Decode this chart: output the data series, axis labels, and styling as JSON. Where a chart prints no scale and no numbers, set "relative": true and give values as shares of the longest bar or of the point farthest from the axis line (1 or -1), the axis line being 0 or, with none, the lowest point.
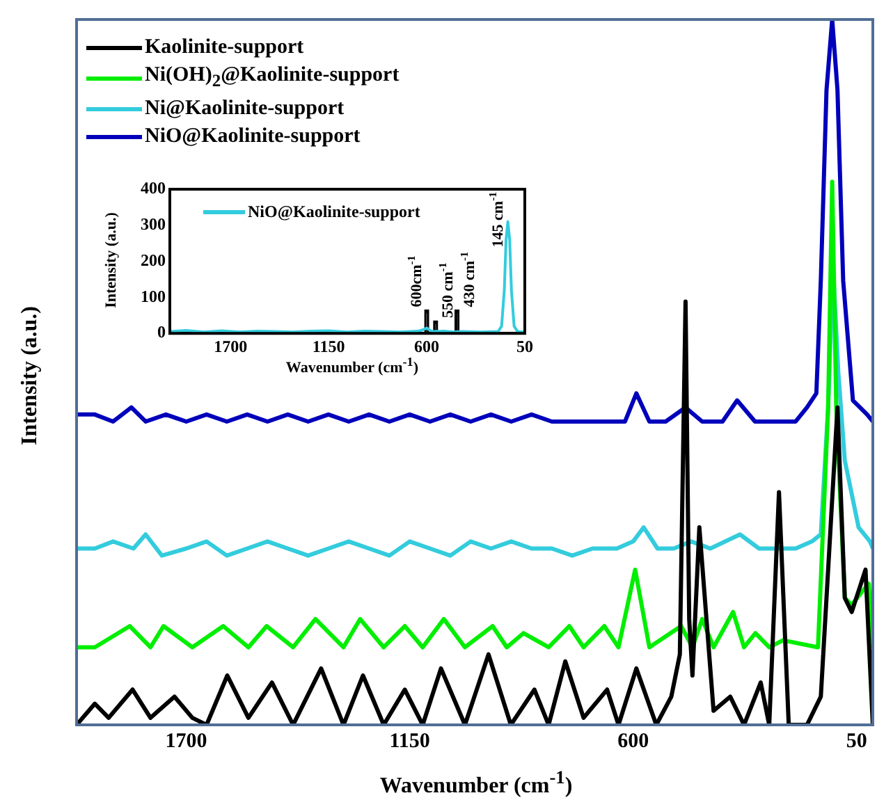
{
  "chart_data": [
    {
      "type": "line",
      "xlabel": "Wavenumber (cm$^{-1}$)",
      "ylabel": "Intensity (a.u.)",
      "relative": true,
      "xlim": [
        1970,
        10
      ],
      "xticks": [
        1700,
        1150,
        600,
        50
      ],
      "legend": "top left",
      "series": [
        {
          "name": "Kaolinite-support",
          "color": "#000000",
          "x": [
            1970,
            1925,
            1891,
            1832,
            1788,
            1729,
            1685,
            1650,
            1599,
            1547,
            1489,
            1437,
            1368,
            1313,
            1265,
            1214,
            1162,
            1118,
            1073,
            1014,
            956,
            901,
            843,
            808,
            767,
            722,
            664,
            636,
            592,
            543,
            506,
            485,
            471,
            462,
            454,
            437,
            402,
            361,
            327,
            286,
            265,
            241,
            217,
            172,
            138,
            97,
            79,
            62,
            45,
            28,
            10
          ],
          "values": [
            0,
            0.03,
            0.01,
            0.05,
            0.01,
            0.04,
            0.01,
            0,
            0.07,
            0.01,
            0.06,
            0,
            0.08,
            0,
            0.07,
            0,
            0.05,
            0,
            0.08,
            0,
            0.1,
            0,
            0.05,
            0,
            0.09,
            0.01,
            0.05,
            0,
            0.08,
            0,
            0.04,
            0.1,
            0.6,
            0.15,
            0.07,
            0.28,
            0.02,
            0.04,
            0,
            0.06,
            0,
            0.33,
            0,
            0,
            0.04,
            0.45,
            0.18,
            0.16,
            0.19,
            0.22,
            0
          ]
        },
        {
          "name": "Ni(OH)$_{2}$@Kaolinite-support",
          "color": "#00ee00",
          "x": [
            1970,
            1925,
            1839,
            1788,
            1756,
            1685,
            1609,
            1547,
            1502,
            1437,
            1382,
            1313,
            1272,
            1214,
            1162,
            1118,
            1066,
            1014,
            946,
            911,
            870,
            808,
            757,
            722,
            671,
            636,
            595,
            560,
            482,
            454,
            430,
            402,
            354,
            327,
            299,
            265,
            231,
            145,
            120,
            110,
            100,
            79,
            62,
            35,
            20,
            10
          ],
          "values": [
            0.11,
            0.11,
            0.14,
            0.11,
            0.14,
            0.11,
            0.14,
            0.11,
            0.14,
            0.11,
            0.15,
            0.11,
            0.15,
            0.11,
            0.14,
            0.11,
            0.15,
            0.11,
            0.14,
            0.11,
            0.13,
            0.11,
            0.14,
            0.11,
            0.14,
            0.11,
            0.22,
            0.11,
            0.14,
            0.11,
            0.15,
            0.11,
            0.16,
            0.11,
            0.13,
            0.11,
            0.12,
            0.11,
            0.45,
            0.77,
            0.45,
            0.18,
            0.17,
            0.19,
            0.2,
            0.11
          ]
        },
        {
          "name": "Ni@Kaolinite-support",
          "color": "#33ccdd",
          "x": [
            1970,
            1925,
            1880,
            1830,
            1800,
            1760,
            1700,
            1650,
            1600,
            1550,
            1500,
            1450,
            1400,
            1350,
            1300,
            1250,
            1200,
            1150,
            1100,
            1050,
            1000,
            950,
            900,
            850,
            800,
            750,
            700,
            640,
            600,
            574,
            540,
            500,
            457,
            410,
            337,
            290,
            241,
            200,
            160,
            138,
            120,
            108,
            95,
            79,
            45,
            17,
            10
          ],
          "values": [
            0.25,
            0.25,
            0.26,
            0.25,
            0.27,
            0.24,
            0.25,
            0.26,
            0.24,
            0.25,
            0.26,
            0.25,
            0.24,
            0.25,
            0.26,
            0.25,
            0.24,
            0.26,
            0.25,
            0.24,
            0.26,
            0.25,
            0.26,
            0.25,
            0.25,
            0.24,
            0.25,
            0.25,
            0.26,
            0.28,
            0.25,
            0.25,
            0.26,
            0.25,
            0.27,
            0.25,
            0.25,
            0.25,
            0.26,
            0.27,
            0.45,
            0.65,
            0.5,
            0.375,
            0.28,
            0.26,
            0.25
          ]
        },
        {
          "name": "NiO@Kaolinite-support",
          "color": "#0000bb",
          "x": [
            1970,
            1925,
            1880,
            1835,
            1800,
            1750,
            1700,
            1650,
            1600,
            1550,
            1500,
            1450,
            1400,
            1350,
            1300,
            1250,
            1200,
            1150,
            1100,
            1050,
            1000,
            950,
            900,
            850,
            800,
            750,
            700,
            640,
            620,
            592,
            560,
            520,
            471,
            430,
            380,
            344,
            300,
            250,
            200,
            172,
            149,
            138,
            124,
            110,
            97,
            83,
            59,
            24,
            10
          ],
          "values": [
            0.44,
            0.44,
            0.43,
            0.45,
            0.43,
            0.44,
            0.43,
            0.44,
            0.43,
            0.44,
            0.43,
            0.44,
            0.43,
            0.44,
            0.43,
            0.44,
            0.43,
            0.44,
            0.43,
            0.44,
            0.43,
            0.44,
            0.43,
            0.44,
            0.43,
            0.43,
            0.43,
            0.43,
            0.43,
            0.47,
            0.43,
            0.43,
            0.45,
            0.43,
            0.43,
            0.46,
            0.43,
            0.43,
            0.43,
            0.45,
            0.47,
            0.63,
            0.9,
            1,
            0.9,
            0.63,
            0.46,
            0.44,
            0.43
          ]
        }
      ]
    },
    {
      "type": "line",
      "xlabel": "Wavenumber (cm$^{-1}$)",
      "ylabel": "Intensity (a.u.)",
      "xlim": [
        2040,
        50
      ],
      "xticks": [
        1700,
        1150,
        600,
        50
      ],
      "ylim": [
        0,
        400
      ],
      "yticks": [
        0,
        100,
        200,
        300,
        400
      ],
      "legend": "top left",
      "series": [
        {
          "type": "bar",
          "color": "#000000",
          "x": [
            600,
            550,
            430
          ],
          "values": [
            65,
            35,
            65
          ]
        },
        {
          "name": "NiO@Kaolinite-support",
          "color": "#33ccdd",
          "x": [
            2040,
            1950,
            1850,
            1750,
            1650,
            1550,
            1450,
            1350,
            1250,
            1150,
            1050,
            950,
            850,
            750,
            650,
            620,
            600,
            580,
            560,
            500,
            450,
            400,
            300,
            200,
            180,
            165,
            155,
            145,
            135,
            125,
            110,
            90,
            60,
            50
          ],
          "values": [
            5,
            8,
            4,
            7,
            4,
            6,
            5,
            4,
            6,
            7,
            4,
            6,
            5,
            4,
            6,
            10,
            15,
            8,
            5,
            6,
            4,
            5,
            4,
            5,
            20,
            120,
            260,
            310,
            260,
            120,
            20,
            5,
            4,
            0
          ]
        }
      ],
      "annotations": [
        {
          "text": "600cm$^{-1}$",
          "x": 600,
          "y": 65
        },
        {
          "text": "550 cm$^{-1}$",
          "x": 550,
          "y": 35
        },
        {
          "text": "430 cm$^{-1}$",
          "x": 430,
          "y": 65
        },
        {
          "text": "145 cm$^{-1}$",
          "x": 145,
          "y": 310
        }
      ]
    }
  ]
}
